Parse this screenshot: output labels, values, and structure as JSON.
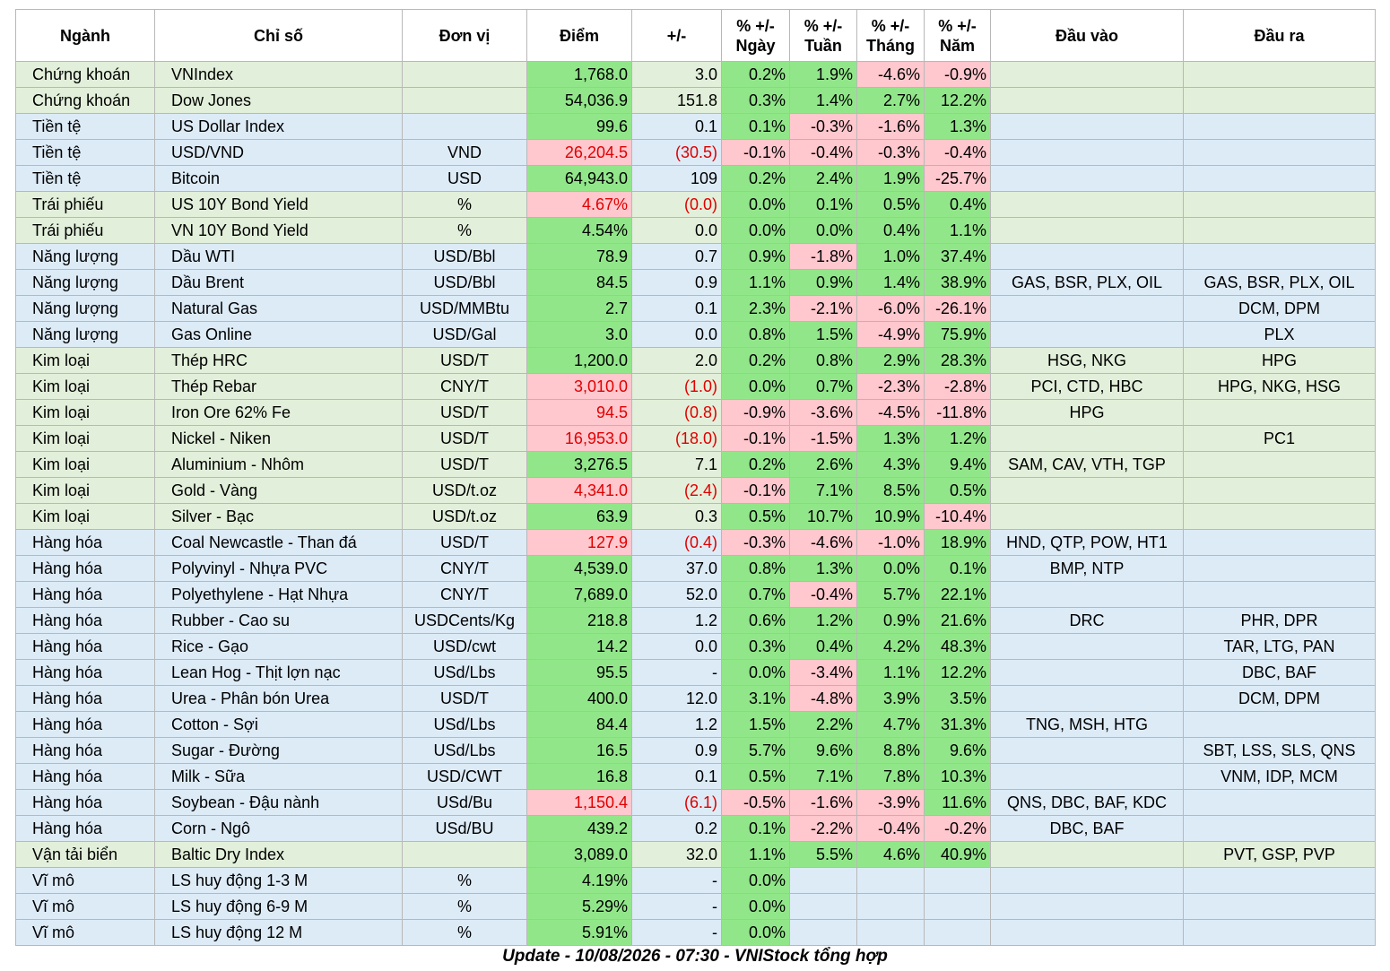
{
  "table": {
    "header": [
      "Ngành",
      "Chỉ số",
      "Đơn vị",
      "Điểm",
      "+/-",
      "% +/-\nNgày",
      "% +/-\nTuần",
      "% +/-\nTháng",
      "% +/-\nNăm",
      "Đầu vào",
      "Đầu ra"
    ],
    "rows": [
      [
        "Chứng khoán",
        "VNIndex",
        null,
        "1,768.0",
        "3.0",
        "0.2%",
        "1.9%",
        "-4.6%",
        "-0.9%",
        null,
        null
      ],
      [
        "Chứng khoán",
        "Dow Jones",
        null,
        "54,036.9",
        "151.8",
        "0.3%",
        "1.4%",
        "2.7%",
        "12.2%",
        null,
        null
      ],
      [
        "Tiền tệ",
        "US Dollar Index",
        null,
        "99.6",
        "0.1",
        "0.1%",
        "-0.3%",
        "-1.6%",
        "1.3%",
        null,
        null
      ],
      [
        "Tiền tệ",
        "USD/VND",
        "VND",
        "26,204.5",
        "(30.5)",
        "-0.1%",
        "-0.4%",
        "-0.3%",
        "-0.4%",
        null,
        null
      ],
      [
        "Tiền tệ",
        "Bitcoin",
        "USD",
        "64,943.0",
        "109",
        "0.2%",
        "2.4%",
        "1.9%",
        "-25.7%",
        null,
        null
      ],
      [
        "Trái phiếu",
        "US 10Y Bond Yield",
        "%",
        "4.67%",
        "(0.0)",
        "0.0%",
        "0.1%",
        "0.5%",
        "0.4%",
        null,
        null
      ],
      [
        "Trái phiếu",
        "VN 10Y Bond Yield",
        "%",
        "4.54%",
        "0.0",
        "0.0%",
        "0.0%",
        "0.4%",
        "1.1%",
        null,
        null
      ],
      [
        "Năng lượng",
        "Dầu WTI",
        "USD/Bbl",
        "78.9",
        "0.7",
        "0.9%",
        "-1.8%",
        "1.0%",
        "37.4%",
        null,
        null
      ],
      [
        "Năng lượng",
        "Dầu Brent",
        "USD/Bbl",
        "84.5",
        "0.9",
        "1.1%",
        "0.9%",
        "1.4%",
        "38.9%",
        "GAS, BSR, PLX, OIL",
        "GAS, BSR, PLX, OIL"
      ],
      [
        "Năng lượng",
        "Natural Gas",
        "USD/MMBtu",
        "2.7",
        "0.1",
        "2.3%",
        "-2.1%",
        "-6.0%",
        "-26.1%",
        null,
        "DCM, DPM"
      ],
      [
        "Năng lượng",
        "Gas Online",
        "USD/Gal",
        "3.0",
        "0.0",
        "0.8%",
        "1.5%",
        "-4.9%",
        "75.9%",
        null,
        "PLX"
      ],
      [
        "Kim loại",
        "Thép HRC",
        "USD/T",
        "1,200.0",
        "2.0",
        "0.2%",
        "0.8%",
        "2.9%",
        "28.3%",
        "HSG, NKG",
        "HPG"
      ],
      [
        "Kim loại",
        "Thép Rebar",
        "CNY/T",
        "3,010.0",
        "(1.0)",
        "0.0%",
        "0.7%",
        "-2.3%",
        "-2.8%",
        "PCI, CTD, HBC",
        "HPG, NKG, HSG"
      ],
      [
        "Kim loại",
        "Iron Ore 62% Fe",
        "USD/T",
        "94.5",
        "(0.8)",
        "-0.9%",
        "-3.6%",
        "-4.5%",
        "-11.8%",
        "HPG",
        null
      ],
      [
        "Kim loại",
        "Nickel - Niken",
        "USD/T",
        "16,953.0",
        "(18.0)",
        "-0.1%",
        "-1.5%",
        "1.3%",
        "1.2%",
        null,
        "PC1"
      ],
      [
        "Kim loại",
        "Aluminium - Nhôm",
        "USD/T",
        "3,276.5",
        "7.1",
        "0.2%",
        "2.6%",
        "4.3%",
        "9.4%",
        "SAM, CAV, VTH, TGP",
        null
      ],
      [
        "Kim loại",
        "Gold - Vàng",
        "USD/t.oz",
        "4,341.0",
        "(2.4)",
        "-0.1%",
        "7.1%",
        "8.5%",
        "0.5%",
        null,
        null
      ],
      [
        "Kim loại",
        "Silver - Bạc",
        "USD/t.oz",
        "63.9",
        "0.3",
        "0.5%",
        "10.7%",
        "10.9%",
        "-10.4%",
        null,
        null
      ],
      [
        "Hàng hóa",
        "Coal Newcastle - Than đá",
        "USD/T",
        "127.9",
        "(0.4)",
        "-0.3%",
        "-4.6%",
        "-1.0%",
        "18.9%",
        "HND, QTP, POW, HT1",
        null
      ],
      [
        "Hàng hóa",
        "Polyvinyl - Nhựa PVC",
        "CNY/T",
        "4,539.0",
        "37.0",
        "0.8%",
        "1.3%",
        "0.0%",
        "0.1%",
        "BMP, NTP",
        null
      ],
      [
        "Hàng hóa",
        "Polyethylene - Hạt Nhựa",
        "CNY/T",
        "7,689.0",
        "52.0",
        "0.7%",
        "-0.4%",
        "5.7%",
        "22.1%",
        null,
        null
      ],
      [
        "Hàng hóa",
        "Rubber - Cao su",
        "USDCents/Kg",
        "218.8",
        "1.2",
        "0.6%",
        "1.2%",
        "0.9%",
        "21.6%",
        "DRC",
        "PHR, DPR"
      ],
      [
        "Hàng hóa",
        "Rice - Gạo",
        "USD/cwt",
        "14.2",
        "0.0",
        "0.3%",
        "0.4%",
        "4.2%",
        "48.3%",
        null,
        "TAR, LTG, PAN"
      ],
      [
        "Hàng hóa",
        "Lean Hog - Thịt lợn nạc",
        "USd/Lbs",
        "95.5",
        "-",
        "0.0%",
        "-3.4%",
        "1.1%",
        "12.2%",
        null,
        "DBC, BAF"
      ],
      [
        "Hàng hóa",
        "Urea - Phân bón Urea",
        "USD/T",
        "400.0",
        "12.0",
        "3.1%",
        "-4.8%",
        "3.9%",
        "3.5%",
        null,
        "DCM, DPM"
      ],
      [
        "Hàng hóa",
        "Cotton - Sợi",
        "USd/Lbs",
        "84.4",
        "1.2",
        "1.5%",
        "2.2%",
        "4.7%",
        "31.3%",
        "TNG, MSH, HTG",
        null
      ],
      [
        "Hàng hóa",
        "Sugar - Đường",
        "USd/Lbs",
        "16.5",
        "0.9",
        "5.7%",
        "9.6%",
        "8.8%",
        "9.6%",
        null,
        "SBT, LSS, SLS, QNS"
      ],
      [
        "Hàng hóa",
        "Milk - Sữa",
        "USD/CWT",
        "16.8",
        "0.1",
        "0.5%",
        "7.1%",
        "7.8%",
        "10.3%",
        null,
        "VNM, IDP, MCM"
      ],
      [
        "Hàng hóa",
        "Soybean - Đậu nành",
        "USd/Bu",
        "1,150.4",
        "(6.1)",
        "-0.5%",
        "-1.6%",
        "-3.9%",
        "11.6%",
        "QNS, DBC, BAF, KDC",
        null
      ],
      [
        "Hàng hóa",
        "Corn - Ngô",
        "USd/BU",
        "439.2",
        "0.2",
        "0.1%",
        "-2.2%",
        "-0.4%",
        "-0.2%",
        "DBC, BAF",
        null
      ],
      [
        "Vận tải biển",
        "Baltic Dry Index",
        null,
        "3,089.0",
        "32.0",
        "1.1%",
        "5.5%",
        "4.6%",
        "40.9%",
        null,
        "PVT, GSP, PVP"
      ],
      [
        "Vĩ mô",
        "LS huy động 1-3 M",
        "%",
        "4.19%",
        "-",
        "0.0%",
        null,
        null,
        null,
        null,
        null
      ],
      [
        "Vĩ mô",
        "LS huy động 6-9 M",
        "%",
        "5.29%",
        "-",
        "0.0%",
        null,
        null,
        null,
        null,
        null
      ],
      [
        "Vĩ mô",
        "LS huy động 12 M",
        "%",
        "5.91%",
        "-",
        "0.0%",
        null,
        null,
        null,
        null,
        null
      ]
    ]
  },
  "footer": "Update - 10/08/2026 - 07:30 - VNIStock tổng hợp"
}
